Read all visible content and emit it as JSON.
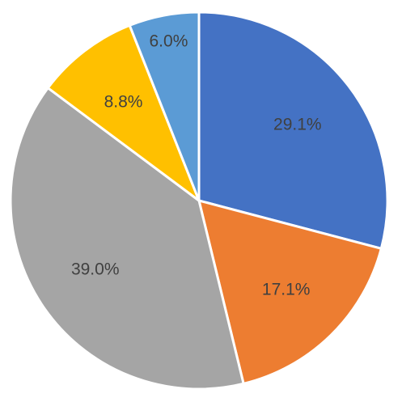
{
  "chart_data": {
    "type": "pie",
    "title": "",
    "start_angle_deg": 0,
    "direction": "clockwise",
    "slices": [
      {
        "value": 29.1,
        "label": "29.1%",
        "color": "#4472C4"
      },
      {
        "value": 17.1,
        "label": "17.1%",
        "color": "#ED7D31"
      },
      {
        "value": 39.0,
        "label": "39.0%",
        "color": "#A5A5A5"
      },
      {
        "value": 8.8,
        "label": "8.8%",
        "color": "#FFC000"
      },
      {
        "value": 6.0,
        "label": "6.0%",
        "color": "#5B9BD5"
      }
    ],
    "legend": "none"
  }
}
